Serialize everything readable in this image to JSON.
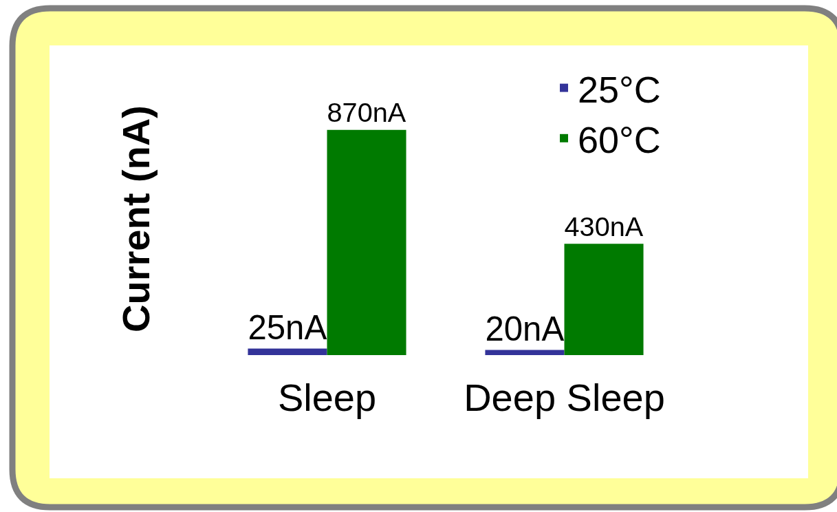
{
  "chart_data": {
    "type": "bar",
    "ylabel": "Current (nA)",
    "categories": [
      "Sleep",
      "Deep Sleep"
    ],
    "series": [
      {
        "name": "25°C",
        "color": "#333399",
        "values": [
          25,
          20
        ],
        "value_labels": [
          "25nA",
          "20nA"
        ]
      },
      {
        "name": "60°C",
        "color": "#007a00",
        "values": [
          870,
          430
        ],
        "value_labels": [
          "870nA",
          "430nA"
        ]
      }
    ],
    "legend": "top right",
    "tick_labels": "x"
  }
}
